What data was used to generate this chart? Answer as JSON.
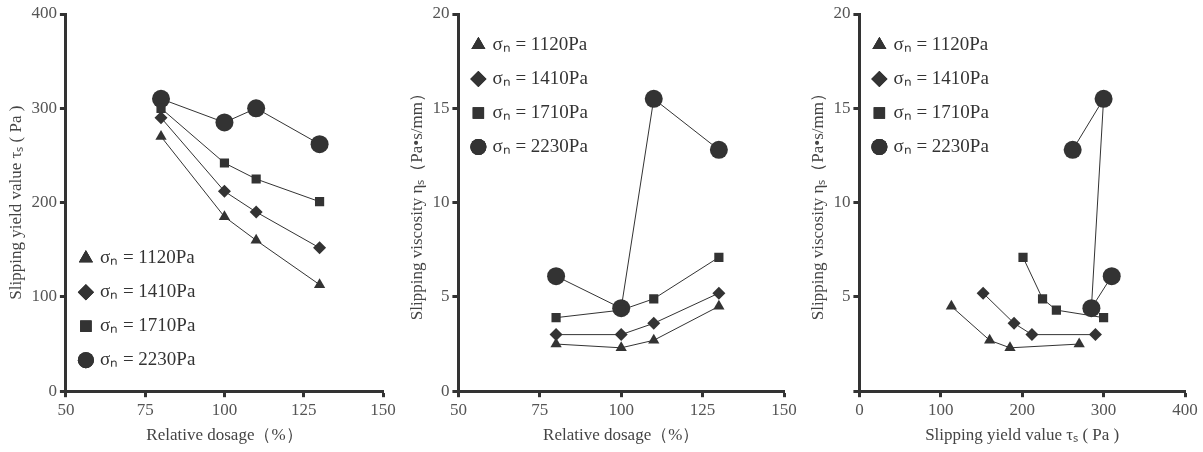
{
  "chart_data": [
    {
      "type": "line",
      "xlabel": "Relative dosage（%）",
      "ylabel": "Slipping yield value τₛ ( Pa )",
      "x": [
        80,
        100,
        110,
        130
      ],
      "xlim": [
        50,
        150
      ],
      "xticks": [
        50,
        75,
        100,
        125,
        150
      ],
      "ylim": [
        0,
        400
      ],
      "yticks": [
        0,
        100,
        200,
        300,
        400
      ],
      "grid": false,
      "legend": "bottom left",
      "series": [
        {
          "name": "σₙ = 1120Pa",
          "color": "#333333",
          "marker": "triangle",
          "values": [
            270,
            185,
            160,
            113
          ]
        },
        {
          "name": "σₙ = 1410Pa",
          "color": "#333333",
          "marker": "diamond",
          "values": [
            290,
            212,
            190,
            152
          ]
        },
        {
          "name": "σₙ = 1710Pa",
          "color": "#333333",
          "marker": "square",
          "values": [
            300,
            242,
            225,
            201
          ]
        },
        {
          "name": "σₙ = 2230Pa",
          "color": "#333333",
          "marker": "circle",
          "values": [
            310,
            285,
            300,
            262
          ]
        }
      ]
    },
    {
      "type": "line",
      "xlabel": "Relative dosage（%）",
      "ylabel": "Slipping viscosity ηₛ（Pa•s/mm）",
      "x": [
        80,
        100,
        110,
        130
      ],
      "xlim": [
        50,
        150
      ],
      "xticks": [
        50,
        75,
        100,
        125,
        150
      ],
      "ylim": [
        0,
        20
      ],
      "yticks": [
        0,
        5,
        10,
        15,
        20
      ],
      "grid": false,
      "legend": "top left",
      "series": [
        {
          "name": "σₙ = 1120Pa",
          "color": "#333333",
          "marker": "triangle",
          "values": [
            2.5,
            2.3,
            2.7,
            4.5
          ]
        },
        {
          "name": "σₙ = 1410Pa",
          "color": "#333333",
          "marker": "diamond",
          "values": [
            3.0,
            3.0,
            3.6,
            5.2
          ]
        },
        {
          "name": "σₙ = 1710Pa",
          "color": "#333333",
          "marker": "square",
          "values": [
            3.9,
            4.3,
            4.9,
            7.1
          ]
        },
        {
          "name": "σₙ = 2230Pa",
          "color": "#333333",
          "marker": "circle",
          "values": [
            6.1,
            4.4,
            15.5,
            12.8
          ]
        }
      ]
    },
    {
      "type": "line",
      "xlabel": "Slipping yield value τₛ ( Pa )",
      "ylabel": "Slipping viscosity ηₛ（Pa•s/mm）",
      "xlim": [
        0,
        400
      ],
      "xticks": [
        0,
        100,
        200,
        300,
        400
      ],
      "ylim": [
        0,
        20
      ],
      "yticks": [
        {
          "value": 0,
          "label": null
        },
        5,
        10,
        15,
        20
      ],
      "grid": false,
      "legend": "top left",
      "series": [
        {
          "name": "σₙ = 1120Pa",
          "color": "#333333",
          "marker": "triangle",
          "x": [
            270,
            185,
            160,
            113
          ],
          "values": [
            2.5,
            2.3,
            2.7,
            4.5
          ]
        },
        {
          "name": "σₙ = 1410Pa",
          "color": "#333333",
          "marker": "diamond",
          "x": [
            290,
            212,
            190,
            152
          ],
          "values": [
            3.0,
            3.0,
            3.6,
            5.2
          ]
        },
        {
          "name": "σₙ = 1710Pa",
          "color": "#333333",
          "marker": "square",
          "x": [
            300,
            242,
            225,
            201
          ],
          "values": [
            3.9,
            4.3,
            4.9,
            7.1
          ]
        },
        {
          "name": "σₙ = 2230Pa",
          "color": "#333333",
          "marker": "circle",
          "x": [
            310,
            285,
            300,
            262
          ],
          "values": [
            6.1,
            4.4,
            15.5,
            12.8
          ]
        }
      ]
    }
  ]
}
